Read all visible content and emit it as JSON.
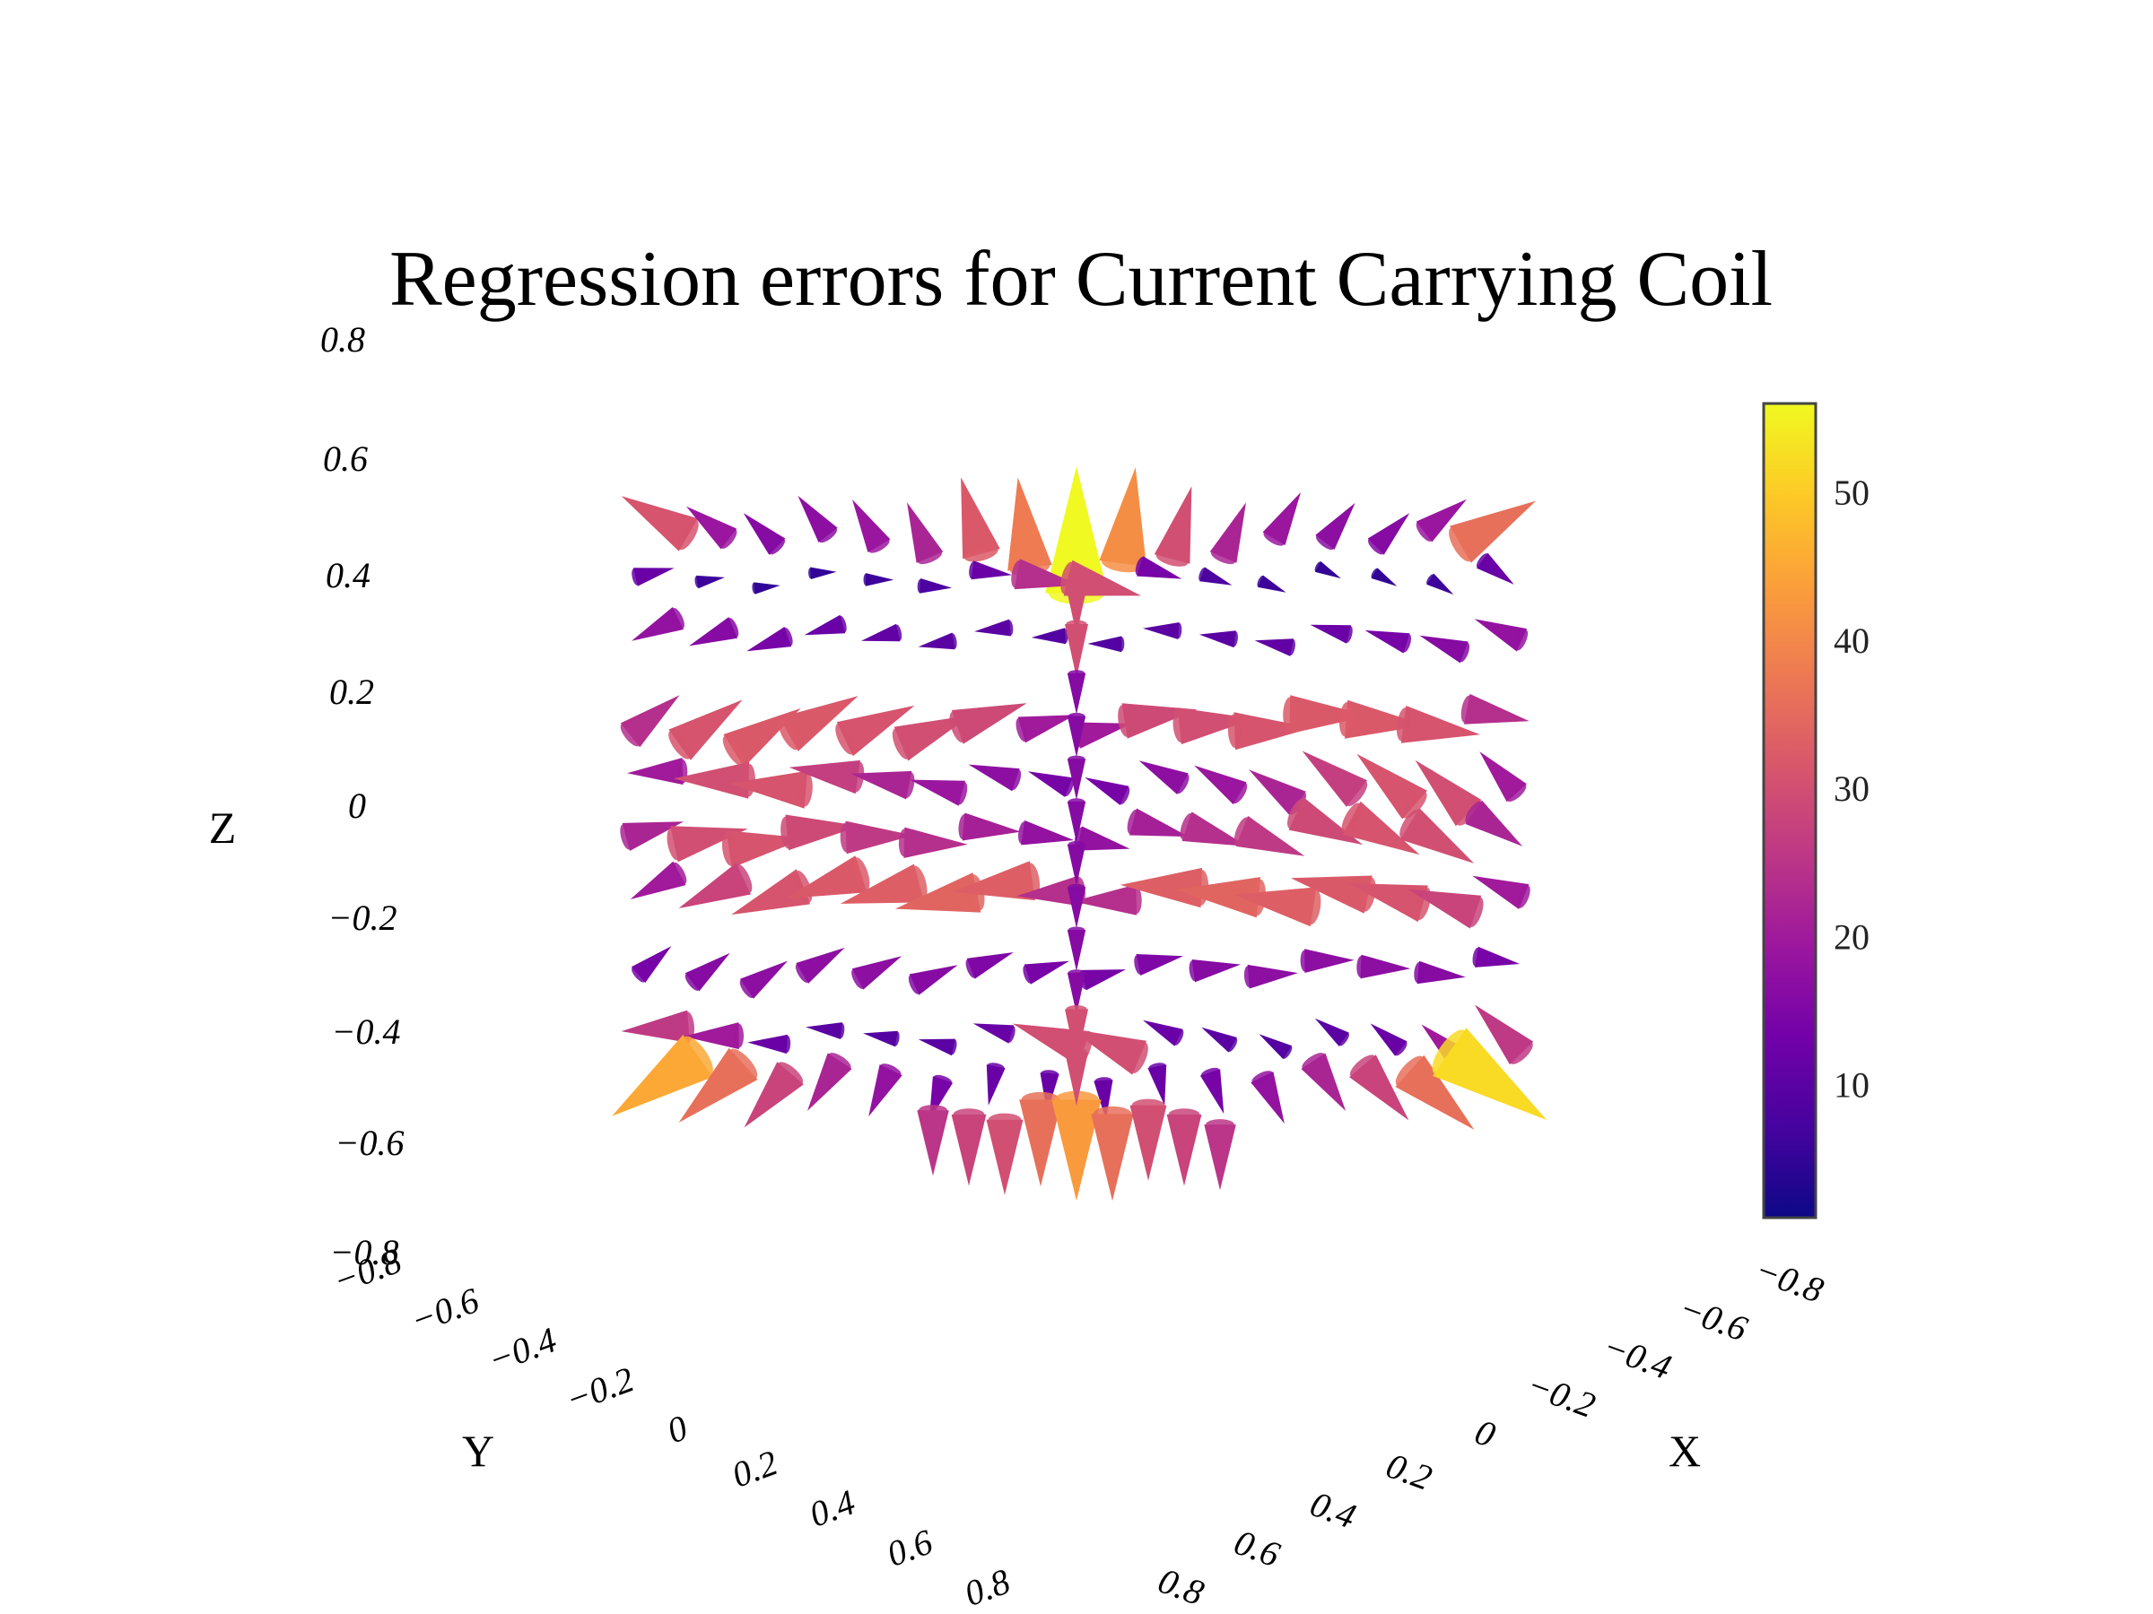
{
  "chart_data": {
    "type": "cone",
    "title": "Regression errors for Current Carrying Coil",
    "colorscale": "Plasma",
    "colorscale_stops": [
      "#0d0887",
      "#46039f",
      "#7201a8",
      "#9c179e",
      "#bd3786",
      "#d8576b",
      "#ed7953",
      "#fb9f3a",
      "#fdca26",
      "#f0f921"
    ],
    "axes": {
      "x": {
        "label": "X",
        "range": [
          -0.8,
          0.8
        ],
        "tick_labels": [
          "−0.8",
          "−0.6",
          "−0.4",
          "−0.2",
          "0",
          "0.2",
          "0.4",
          "0.6",
          "0.8"
        ]
      },
      "y": {
        "label": "Y",
        "range": [
          -0.8,
          0.8
        ],
        "tick_labels": [
          "−0.8",
          "−0.6",
          "−0.4",
          "−0.2",
          "0",
          "0.2",
          "0.4",
          "0.6",
          "0.8"
        ]
      },
      "z": {
        "label": "Z",
        "range": [
          -0.8,
          0.8
        ],
        "tick_labels": [
          "0.8",
          "0.6",
          "0.4",
          "0.2",
          "0",
          "−0.2",
          "−0.4",
          "−0.6",
          "−0.8"
        ]
      }
    },
    "colorbar": {
      "range": [
        1,
        56
      ],
      "tick_values": [
        10,
        20,
        30,
        40,
        50
      ],
      "tick_labels": [
        "10",
        "20",
        "30",
        "40",
        "50"
      ]
    },
    "grid": false,
    "field_layers": [
      {
        "z": 0.5,
        "magnitudes": [
          31,
          19,
          16,
          17,
          19,
          22,
          32,
          38,
          56,
          41,
          30,
          22,
          19,
          17,
          16,
          19,
          36
        ]
      },
      {
        "z": 0.4,
        "magnitudes": [
          12,
          6,
          5,
          5,
          6,
          8,
          12,
          24,
          30,
          14,
          8,
          6,
          5,
          5,
          6,
          12
        ]
      },
      {
        "z": 0.3,
        "magnitudes": [
          18,
          16,
          14,
          12,
          11,
          10,
          10,
          9,
          9,
          10,
          10,
          11,
          12,
          14,
          16,
          18
        ]
      },
      {
        "z": 0.15,
        "magnitudes": [
          24,
          31,
          32,
          32,
          31,
          30,
          29,
          20,
          20,
          29,
          30,
          31,
          32,
          32,
          31,
          24
        ]
      },
      {
        "z": 0.05,
        "magnitudes": [
          20,
          30,
          31,
          27,
          22,
          19,
          17,
          14,
          14,
          17,
          19,
          22,
          27,
          31,
          30,
          20
        ]
      },
      {
        "z": -0.05,
        "magnitudes": [
          22,
          30,
          31,
          29,
          26,
          24,
          21,
          18,
          18,
          21,
          24,
          26,
          29,
          31,
          30,
          22
        ]
      },
      {
        "z": -0.15,
        "magnitudes": [
          20,
          28,
          31,
          32,
          33,
          34,
          33,
          24,
          24,
          33,
          34,
          33,
          32,
          31,
          28,
          20
        ]
      },
      {
        "z": -0.28,
        "magnitudes": [
          14,
          16,
          17,
          17,
          17,
          16,
          15,
          14,
          14,
          15,
          16,
          17,
          17,
          17,
          16,
          14
        ]
      },
      {
        "z": -0.4,
        "magnitudes": [
          26,
          20,
          12,
          10,
          9,
          10,
          12,
          30,
          30,
          12,
          10,
          9,
          10,
          12,
          20,
          26
        ]
      },
      {
        "z": -0.5,
        "magnitudes": [
          45,
          36,
          28,
          22,
          18,
          14,
          12,
          12,
          12,
          12,
          14,
          18,
          22,
          28,
          36,
          52
        ]
      },
      {
        "z": -0.6,
        "magnitudes": [
          25,
          28,
          30,
          36,
          43,
          36,
          30,
          28,
          25
        ]
      }
    ]
  }
}
